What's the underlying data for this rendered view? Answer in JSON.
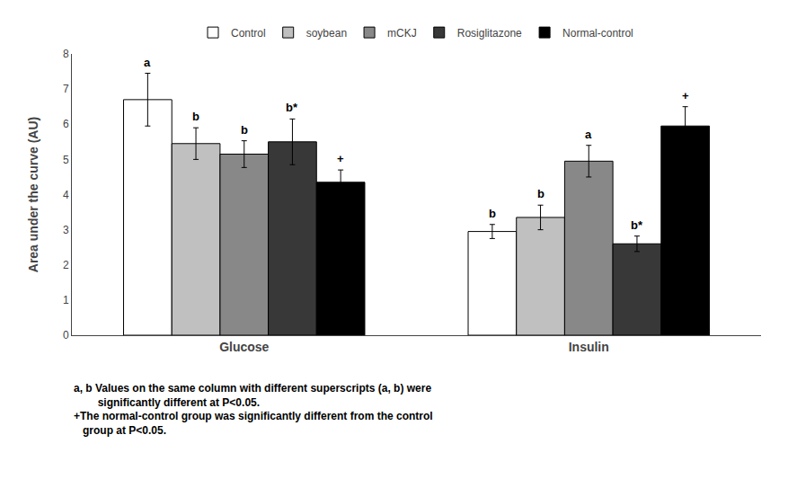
{
  "chart_data": {
    "type": "bar",
    "categories": [
      "Glucose",
      "Insulin"
    ],
    "series": [
      {
        "name": "Control",
        "color": "#ffffff",
        "values": [
          6.7,
          2.95
        ],
        "errors": [
          0.75,
          0.2
        ],
        "annotations": [
          "a",
          "b"
        ]
      },
      {
        "name": "soybean",
        "color": "#c0c0c0",
        "values": [
          5.45,
          3.35
        ],
        "errors": [
          0.45,
          0.35
        ],
        "annotations": [
          "b",
          "b"
        ]
      },
      {
        "name": "mCKJ",
        "color": "#888888",
        "values": [
          5.15,
          4.95
        ],
        "errors": [
          0.38,
          0.45
        ],
        "annotations": [
          "b",
          "a"
        ]
      },
      {
        "name": "Rosiglitazone",
        "color": "#383838",
        "values": [
          5.5,
          2.6
        ],
        "errors": [
          0.65,
          0.22
        ],
        "annotations": [
          "b*",
          "b*"
        ]
      },
      {
        "name": "Normal-control",
        "color": "#000000",
        "values": [
          4.35,
          5.95
        ],
        "errors": [
          0.35,
          0.55
        ],
        "annotations": [
          "+",
          "+"
        ]
      }
    ],
    "ylabel": "Area under the curve (AU)",
    "ylim": [
      0,
      8
    ],
    "yticks": [
      0,
      1,
      2,
      3,
      4,
      5,
      6,
      7,
      8
    ],
    "grid": false,
    "legend": "top",
    "footnotes": [
      "a, b Values on the same column with different superscripts (a, b) were",
      "        significantly different at P<0.05.",
      "+The normal-control group was significantly different from the control",
      "   group at P<0.05."
    ]
  }
}
